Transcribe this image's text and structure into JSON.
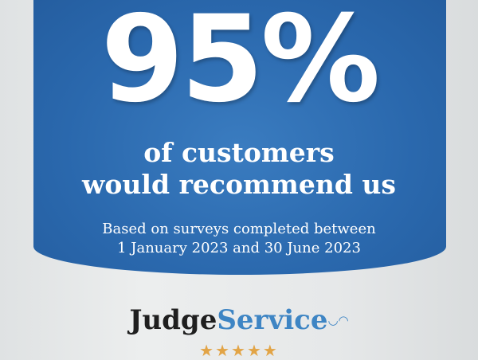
{
  "headline": {
    "stat": "95%",
    "line1": "of customers",
    "line2": "would recommend us"
  },
  "subtext": {
    "line1": "Based on surveys completed between",
    "line2": "1 January 2023 and 30 June 2023"
  },
  "logo": {
    "part1": "Judge",
    "part2": "Service",
    "icon": "smiley-face-icon"
  },
  "rating": {
    "stars": 5,
    "max": 5,
    "glyphs": "★★★★★"
  },
  "colors": {
    "panel": "#2a68ad",
    "logo_blue": "#3e85c4",
    "star": "#e2a446"
  }
}
